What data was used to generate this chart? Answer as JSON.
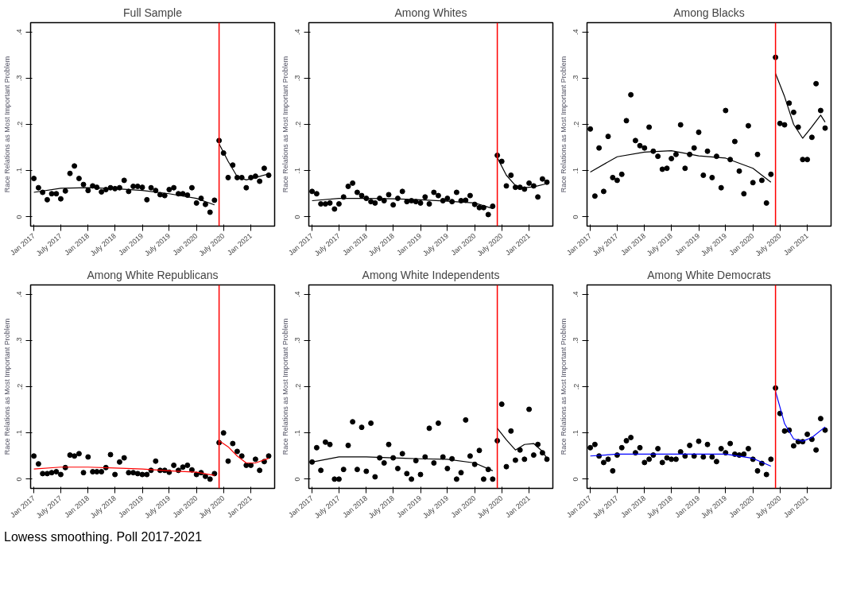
{
  "chart_data": [
    {
      "type": "scatter",
      "title": "Full Sample",
      "ylabel": "Race Relations as Most Important Problem",
      "line_style": "solid",
      "grid": false,
      "x": [
        "2017-01",
        "2017-02",
        "2017-03",
        "2017-04",
        "2017-05",
        "2017-06",
        "2017-07",
        "2017-08",
        "2017-09",
        "2017-10",
        "2017-11",
        "2017-12",
        "2018-01",
        "2018-02",
        "2018-03",
        "2018-04",
        "2018-05",
        "2018-06",
        "2018-07",
        "2018-08",
        "2018-09",
        "2018-10",
        "2018-11",
        "2018-12",
        "2019-01",
        "2019-02",
        "2019-03",
        "2019-04",
        "2019-05",
        "2019-06",
        "2019-07",
        "2019-08",
        "2019-09",
        "2019-10",
        "2019-11",
        "2019-12",
        "2020-01",
        "2020-02",
        "2020-03",
        "2020-04",
        "2020-05",
        "2020-06",
        "2020-07",
        "2020-08",
        "2020-09",
        "2020-10",
        "2020-11",
        "2020-12",
        "2021-01",
        "2021-02",
        "2021-03",
        "2021-04",
        "2021-05"
      ],
      "xlim": [
        "2016-12-10",
        "2021-06-10"
      ],
      "xticks": [
        {
          "value": "2017-01",
          "label": "Jan 2017"
        },
        {
          "value": "2017-07",
          "label": "July 2017"
        },
        {
          "value": "2018-01",
          "label": "Jan 2018"
        },
        {
          "value": "2018-07",
          "label": "July 2018"
        },
        {
          "value": "2019-01",
          "label": "Jan 2019"
        },
        {
          "value": "2019-07",
          "label": "July 2019"
        },
        {
          "value": "2020-01",
          "label": "Jan 2020"
        },
        {
          "value": "2020-07",
          "label": "July 2020"
        },
        {
          "value": "2021-01",
          "label": "Jan 2021"
        }
      ],
      "ylim": [
        -0.02,
        0.42
      ],
      "yticks": [
        0,
        {
          "value": 0.1,
          "label": ".1"
        },
        {
          "value": 0.2,
          "label": ".2"
        },
        {
          "value": 0.3,
          "label": ".3"
        },
        {
          "value": 0.4,
          "label": ".4"
        }
      ],
      "ref_lines": [
        {
          "axis": "x",
          "value": "2020-06",
          "color": "#ff0000"
        }
      ],
      "series": [
        {
          "color": "#000000",
          "marker": "circle",
          "values": [
            0.083,
            0.063,
            0.053,
            0.037,
            0.05,
            0.05,
            0.039,
            0.056,
            0.094,
            0.11,
            0.083,
            0.07,
            0.057,
            0.067,
            0.064,
            0.054,
            0.059,
            0.063,
            0.061,
            0.063,
            0.079,
            0.055,
            0.066,
            0.066,
            0.064,
            0.037,
            0.063,
            0.057,
            0.048,
            0.046,
            0.059,
            0.063,
            0.05,
            0.05,
            0.047,
            0.063,
            0.03,
            0.04,
            0.027,
            0.01,
            0.036,
            0.165,
            0.138,
            0.085,
            0.112,
            0.085,
            0.085,
            0.063,
            0.085,
            0.088,
            0.077,
            0.105,
            0.09
          ]
        },
        {
          "type": "line",
          "color": "#000000",
          "x": [
            "2017-01",
            "2017-07",
            "2018-01",
            "2018-07",
            "2019-01",
            "2019-07",
            "2020-01",
            "2020-05"
          ],
          "values": [
            0.053,
            0.062,
            0.063,
            0.061,
            0.057,
            0.05,
            0.04,
            0.026
          ]
        },
        {
          "type": "line",
          "color": "#000000",
          "x": [
            "2020-06",
            "2020-08",
            "2020-10",
            "2020-12",
            "2021-02",
            "2021-05"
          ],
          "values": [
            0.158,
            0.12,
            0.087,
            0.08,
            0.085,
            0.093
          ]
        }
      ]
    },
    {
      "type": "scatter",
      "title": "Among Whites",
      "ylabel": "Race Relations as Most Important Problem",
      "line_style": "solid",
      "grid": false,
      "x": [
        "2017-01",
        "2017-02",
        "2017-03",
        "2017-04",
        "2017-05",
        "2017-06",
        "2017-07",
        "2017-08",
        "2017-09",
        "2017-10",
        "2017-11",
        "2017-12",
        "2018-01",
        "2018-02",
        "2018-03",
        "2018-04",
        "2018-05",
        "2018-06",
        "2018-07",
        "2018-08",
        "2018-09",
        "2018-10",
        "2018-11",
        "2018-12",
        "2019-01",
        "2019-02",
        "2019-03",
        "2019-04",
        "2019-05",
        "2019-06",
        "2019-07",
        "2019-08",
        "2019-09",
        "2019-10",
        "2019-11",
        "2019-12",
        "2020-01",
        "2020-02",
        "2020-03",
        "2020-04",
        "2020-05",
        "2020-06",
        "2020-07",
        "2020-08",
        "2020-09",
        "2020-10",
        "2020-11",
        "2020-12",
        "2021-01",
        "2021-02",
        "2021-03",
        "2021-04",
        "2021-05"
      ],
      "xlim": [
        "2016-12-10",
        "2021-06-10"
      ],
      "xticks": [
        {
          "value": "2017-01",
          "label": "Jan 2017"
        },
        {
          "value": "2017-07",
          "label": "July 2017"
        },
        {
          "value": "2018-01",
          "label": "Jan 2018"
        },
        {
          "value": "2018-07",
          "label": "July 2018"
        },
        {
          "value": "2019-01",
          "label": "Jan 2019"
        },
        {
          "value": "2019-07",
          "label": "July 2019"
        },
        {
          "value": "2020-01",
          "label": "Jan 2020"
        },
        {
          "value": "2020-07",
          "label": "July 2020"
        },
        {
          "value": "2021-01",
          "label": "Jan 2021"
        }
      ],
      "ylim": [
        -0.02,
        0.42
      ],
      "yticks": [
        0,
        {
          "value": 0.1,
          "label": ".1"
        },
        {
          "value": 0.2,
          "label": ".2"
        },
        {
          "value": 0.3,
          "label": ".3"
        },
        {
          "value": 0.4,
          "label": ".4"
        }
      ],
      "ref_lines": [
        {
          "axis": "x",
          "value": "2020-06",
          "color": "#ff0000"
        }
      ],
      "series": [
        {
          "color": "#000000",
          "marker": "circle",
          "values": [
            0.055,
            0.05,
            0.028,
            0.028,
            0.03,
            0.017,
            0.028,
            0.043,
            0.066,
            0.073,
            0.053,
            0.046,
            0.04,
            0.033,
            0.03,
            0.04,
            0.035,
            0.048,
            0.026,
            0.04,
            0.055,
            0.033,
            0.035,
            0.033,
            0.03,
            0.043,
            0.028,
            0.053,
            0.046,
            0.035,
            0.04,
            0.033,
            0.053,
            0.035,
            0.036,
            0.046,
            0.027,
            0.02,
            0.02,
            0.005,
            0.023,
            0.133,
            0.12,
            0.067,
            0.09,
            0.064,
            0.064,
            0.06,
            0.073,
            0.067,
            0.043,
            0.082,
            0.075
          ]
        },
        {
          "type": "line",
          "color": "#000000",
          "x": [
            "2017-01",
            "2017-07",
            "2018-01",
            "2018-07",
            "2019-01",
            "2019-07",
            "2020-01",
            "2020-05"
          ],
          "values": [
            0.035,
            0.04,
            0.04,
            0.039,
            0.037,
            0.034,
            0.03,
            0.018
          ]
        },
        {
          "type": "line",
          "color": "#000000",
          "x": [
            "2020-06",
            "2020-08",
            "2020-10",
            "2020-12",
            "2021-02",
            "2021-05"
          ],
          "values": [
            0.128,
            0.09,
            0.068,
            0.063,
            0.065,
            0.072
          ]
        }
      ]
    },
    {
      "type": "scatter",
      "title": "Among Blacks",
      "ylabel": "Race Relations as Most Important Problem",
      "line_style": "solid",
      "grid": false,
      "x": [
        "2017-01",
        "2017-02",
        "2017-03",
        "2017-04",
        "2017-05",
        "2017-06",
        "2017-07",
        "2017-08",
        "2017-09",
        "2017-10",
        "2017-11",
        "2017-12",
        "2018-01",
        "2018-02",
        "2018-03",
        "2018-04",
        "2018-05",
        "2018-06",
        "2018-07",
        "2018-08",
        "2018-09",
        "2018-10",
        "2018-11",
        "2018-12",
        "2019-01",
        "2019-02",
        "2019-03",
        "2019-04",
        "2019-05",
        "2019-06",
        "2019-07",
        "2019-08",
        "2019-09",
        "2019-10",
        "2019-11",
        "2019-12",
        "2020-01",
        "2020-02",
        "2020-03",
        "2020-04",
        "2020-05",
        "2020-06",
        "2020-07",
        "2020-08",
        "2020-09",
        "2020-10",
        "2020-11",
        "2020-12",
        "2021-01",
        "2021-02",
        "2021-03",
        "2021-04",
        "2021-05"
      ],
      "xlim": [
        "2016-12-10",
        "2021-06-10"
      ],
      "xticks": [
        {
          "value": "2017-01",
          "label": "Jan 2017"
        },
        {
          "value": "2017-07",
          "label": "July 2017"
        },
        {
          "value": "2018-01",
          "label": "Jan 2018"
        },
        {
          "value": "2018-07",
          "label": "July 2018"
        },
        {
          "value": "2019-01",
          "label": "Jan 2019"
        },
        {
          "value": "2019-07",
          "label": "July 2019"
        },
        {
          "value": "2020-01",
          "label": "Jan 2020"
        },
        {
          "value": "2020-07",
          "label": "July 2020"
        },
        {
          "value": "2021-01",
          "label": "Jan 2021"
        }
      ],
      "ylim": [
        -0.02,
        0.42
      ],
      "yticks": [
        0,
        {
          "value": 0.1,
          "label": ".1"
        },
        {
          "value": 0.2,
          "label": ".2"
        },
        {
          "value": 0.3,
          "label": ".3"
        },
        {
          "value": 0.4,
          "label": ".4"
        }
      ],
      "ref_lines": [
        {
          "axis": "x",
          "value": "2020-06",
          "color": "#ff0000"
        }
      ],
      "series": [
        {
          "color": "#000000",
          "marker": "circle",
          "values": [
            0.19,
            0.045,
            0.149,
            0.055,
            0.174,
            0.085,
            0.079,
            0.092,
            0.208,
            0.264,
            0.165,
            0.154,
            0.149,
            0.194,
            0.142,
            0.131,
            0.103,
            0.105,
            0.126,
            0.135,
            0.199,
            0.105,
            0.135,
            0.149,
            0.183,
            0.09,
            0.142,
            0.085,
            0.131,
            0.063,
            0.23,
            0.124,
            0.163,
            0.099,
            0.05,
            0.197,
            0.074,
            0.135,
            0.079,
            0.03,
            0.092,
            0.345,
            0.202,
            0.199,
            0.246,
            0.226,
            0.194,
            0.124,
            0.124,
            0.172,
            0.288,
            0.23,
            0.192
          ]
        },
        {
          "type": "line",
          "color": "#000000",
          "x": [
            "2017-01",
            "2017-07",
            "2018-01",
            "2018-07",
            "2019-01",
            "2019-07",
            "2020-01",
            "2020-05"
          ],
          "values": [
            0.097,
            0.13,
            0.14,
            0.143,
            0.132,
            0.127,
            0.105,
            0.075
          ]
        },
        {
          "type": "line",
          "color": "#000000",
          "x": [
            "2020-06",
            "2020-08",
            "2020-10",
            "2020-12",
            "2021-02",
            "2021-04",
            "2021-05"
          ],
          "values": [
            0.31,
            0.26,
            0.2,
            0.17,
            0.195,
            0.22,
            0.205
          ]
        }
      ]
    },
    {
      "type": "scatter",
      "title": "Among White Republicans",
      "ylabel": "Race Relations as Most Important Problem",
      "line_style": "solid",
      "grid": false,
      "x": [
        "2017-01",
        "2017-02",
        "2017-03",
        "2017-04",
        "2017-05",
        "2017-06",
        "2017-07",
        "2017-08",
        "2017-09",
        "2017-10",
        "2017-11",
        "2017-12",
        "2018-01",
        "2018-02",
        "2018-03",
        "2018-04",
        "2018-05",
        "2018-06",
        "2018-07",
        "2018-08",
        "2018-09",
        "2018-10",
        "2018-11",
        "2018-12",
        "2019-01",
        "2019-02",
        "2019-03",
        "2019-04",
        "2019-05",
        "2019-06",
        "2019-07",
        "2019-08",
        "2019-09",
        "2019-10",
        "2019-11",
        "2019-12",
        "2020-01",
        "2020-02",
        "2020-03",
        "2020-04",
        "2020-05",
        "2020-06",
        "2020-07",
        "2020-08",
        "2020-09",
        "2020-10",
        "2020-11",
        "2020-12",
        "2021-01",
        "2021-02",
        "2021-03",
        "2021-04",
        "2021-05"
      ],
      "xlim": [
        "2016-12-10",
        "2021-06-10"
      ],
      "xticks": [
        {
          "value": "2017-01",
          "label": "Jan 2017"
        },
        {
          "value": "2017-07",
          "label": "July 2017"
        },
        {
          "value": "2018-01",
          "label": "Jan 2018"
        },
        {
          "value": "2018-07",
          "label": "July 2018"
        },
        {
          "value": "2019-01",
          "label": "Jan 2019"
        },
        {
          "value": "2019-07",
          "label": "July 2019"
        },
        {
          "value": "2020-01",
          "label": "Jan 2020"
        },
        {
          "value": "2020-07",
          "label": "July 2020"
        },
        {
          "value": "2021-01",
          "label": "Jan 2021"
        }
      ],
      "ylim": [
        -0.02,
        0.42
      ],
      "yticks": [
        0,
        {
          "value": 0.1,
          "label": ".1"
        },
        {
          "value": 0.2,
          "label": ".2"
        },
        {
          "value": 0.3,
          "label": ".3"
        },
        {
          "value": 0.4,
          "label": ".4"
        }
      ],
      "ref_lines": [
        {
          "axis": "x",
          "value": "2020-06",
          "color": "#ff0000"
        }
      ],
      "series": [
        {
          "color": "#000000",
          "marker": "circle",
          "values": [
            0.05,
            0.033,
            0.012,
            0.012,
            0.014,
            0.016,
            0.01,
            0.025,
            0.052,
            0.05,
            0.055,
            0.014,
            0.048,
            0.016,
            0.016,
            0.016,
            0.025,
            0.053,
            0.01,
            0.037,
            0.046,
            0.014,
            0.014,
            0.012,
            0.01,
            0.01,
            0.019,
            0.039,
            0.019,
            0.019,
            0.015,
            0.03,
            0.019,
            0.026,
            0.03,
            0.02,
            0.01,
            0.014,
            0.006,
            0.0,
            0.012,
            0.079,
            0.1,
            0.039,
            0.077,
            0.06,
            0.05,
            0.03,
            0.03,
            0.043,
            0.019,
            0.038,
            0.05
          ]
        },
        {
          "type": "line",
          "color": "#ff0000",
          "x": [
            "2017-01",
            "2017-07",
            "2018-01",
            "2018-07",
            "2019-01",
            "2019-07",
            "2020-01",
            "2020-05"
          ],
          "values": [
            0.022,
            0.026,
            0.026,
            0.024,
            0.022,
            0.018,
            0.015,
            0.008
          ]
        },
        {
          "type": "line",
          "color": "#ff0000",
          "x": [
            "2020-06",
            "2020-08",
            "2020-10",
            "2020-12",
            "2021-02",
            "2021-05"
          ],
          "values": [
            0.083,
            0.07,
            0.05,
            0.035,
            0.035,
            0.045
          ]
        }
      ]
    },
    {
      "type": "scatter",
      "title": "Among White Independents",
      "ylabel": "Race Relations as Most Important Problem",
      "line_style": "solid",
      "grid": false,
      "x": [
        "2017-01",
        "2017-02",
        "2017-03",
        "2017-04",
        "2017-05",
        "2017-06",
        "2017-07",
        "2017-08",
        "2017-09",
        "2017-10",
        "2017-11",
        "2017-12",
        "2018-01",
        "2018-02",
        "2018-03",
        "2018-04",
        "2018-05",
        "2018-06",
        "2018-07",
        "2018-08",
        "2018-09",
        "2018-10",
        "2018-11",
        "2018-12",
        "2019-01",
        "2019-02",
        "2019-03",
        "2019-04",
        "2019-05",
        "2019-06",
        "2019-07",
        "2019-08",
        "2019-09",
        "2019-10",
        "2019-11",
        "2019-12",
        "2020-01",
        "2020-02",
        "2020-03",
        "2020-04",
        "2020-05",
        "2020-06",
        "2020-07",
        "2020-08",
        "2020-09",
        "2020-10",
        "2020-11",
        "2020-12",
        "2021-01",
        "2021-02",
        "2021-03",
        "2021-04",
        "2021-05"
      ],
      "xlim": [
        "2016-12-10",
        "2021-06-10"
      ],
      "xticks": [
        {
          "value": "2017-01",
          "label": "Jan 2017"
        },
        {
          "value": "2017-07",
          "label": "July 2017"
        },
        {
          "value": "2018-01",
          "label": "Jan 2018"
        },
        {
          "value": "2018-07",
          "label": "July 2018"
        },
        {
          "value": "2019-01",
          "label": "Jan 2019"
        },
        {
          "value": "2019-07",
          "label": "July 2019"
        },
        {
          "value": "2020-01",
          "label": "Jan 2020"
        },
        {
          "value": "2020-07",
          "label": "July 2020"
        },
        {
          "value": "2021-01",
          "label": "Jan 2021"
        }
      ],
      "ylim": [
        -0.02,
        0.42
      ],
      "yticks": [
        0,
        {
          "value": 0.1,
          "label": ".1"
        },
        {
          "value": 0.2,
          "label": ".2"
        },
        {
          "value": 0.3,
          "label": ".3"
        },
        {
          "value": 0.4,
          "label": ".4"
        }
      ],
      "ref_lines": [
        {
          "axis": "x",
          "value": "2020-06",
          "color": "#ff0000"
        }
      ],
      "series": [
        {
          "color": "#000000",
          "marker": "circle",
          "values": [
            0.037,
            0.068,
            0.019,
            0.08,
            0.075,
            0.0,
            0.0,
            0.021,
            0.073,
            0.124,
            0.021,
            0.112,
            0.017,
            0.121,
            0.005,
            0.046,
            0.035,
            0.075,
            0.046,
            0.023,
            0.055,
            0.012,
            0.0,
            0.04,
            0.01,
            0.048,
            0.11,
            0.035,
            0.121,
            0.048,
            0.023,
            0.044,
            0.0,
            0.014,
            0.128,
            0.05,
            0.032,
            0.062,
            0.0,
            0.021,
            0.0,
            0.083,
            0.162,
            0.027,
            0.104,
            0.041,
            0.063,
            0.043,
            0.151,
            0.052,
            0.075,
            0.057,
            0.043
          ]
        },
        {
          "type": "line",
          "color": "#000000",
          "x": [
            "2017-01",
            "2017-07",
            "2018-01",
            "2018-07",
            "2019-01",
            "2019-07",
            "2020-01",
            "2020-05"
          ],
          "values": [
            0.037,
            0.048,
            0.048,
            0.046,
            0.044,
            0.043,
            0.035,
            0.018
          ]
        },
        {
          "type": "line",
          "color": "#000000",
          "x": [
            "2020-06",
            "2020-08",
            "2020-10",
            "2020-12",
            "2021-02",
            "2021-04",
            "2021-05"
          ],
          "values": [
            0.11,
            0.085,
            0.063,
            0.075,
            0.077,
            0.06,
            0.045
          ]
        }
      ]
    },
    {
      "type": "scatter",
      "title": "Among White Democrats",
      "ylabel": "Race Relations as Most Important Problem",
      "line_style": "solid",
      "grid": false,
      "x": [
        "2017-01",
        "2017-02",
        "2017-03",
        "2017-04",
        "2017-05",
        "2017-06",
        "2017-07",
        "2017-08",
        "2017-09",
        "2017-10",
        "2017-11",
        "2017-12",
        "2018-01",
        "2018-02",
        "2018-03",
        "2018-04",
        "2018-05",
        "2018-06",
        "2018-07",
        "2018-08",
        "2018-09",
        "2018-10",
        "2018-11",
        "2018-12",
        "2019-01",
        "2019-02",
        "2019-03",
        "2019-04",
        "2019-05",
        "2019-06",
        "2019-07",
        "2019-08",
        "2019-09",
        "2019-10",
        "2019-11",
        "2019-12",
        "2020-01",
        "2020-02",
        "2020-03",
        "2020-04",
        "2020-05",
        "2020-06",
        "2020-07",
        "2020-08",
        "2020-09",
        "2020-10",
        "2020-11",
        "2020-12",
        "2021-01",
        "2021-02",
        "2021-03",
        "2021-04",
        "2021-05"
      ],
      "xlim": [
        "2016-12-10",
        "2021-06-10"
      ],
      "xticks": [
        {
          "value": "2017-01",
          "label": "Jan 2017"
        },
        {
          "value": "2017-07",
          "label": "July 2017"
        },
        {
          "value": "2018-01",
          "label": "Jan 2018"
        },
        {
          "value": "2018-07",
          "label": "July 2018"
        },
        {
          "value": "2019-01",
          "label": "Jan 2019"
        },
        {
          "value": "2019-07",
          "label": "July 2019"
        },
        {
          "value": "2020-01",
          "label": "Jan 2020"
        },
        {
          "value": "2020-07",
          "label": "July 2020"
        },
        {
          "value": "2021-01",
          "label": "Jan 2021"
        }
      ],
      "ylim": [
        -0.02,
        0.42
      ],
      "yticks": [
        0,
        {
          "value": 0.1,
          "label": ".1"
        },
        {
          "value": 0.2,
          "label": ".2"
        },
        {
          "value": 0.3,
          "label": ".3"
        },
        {
          "value": 0.4,
          "label": ".4"
        }
      ],
      "ref_lines": [
        {
          "axis": "x",
          "value": "2020-06",
          "color": "#ff0000"
        }
      ],
      "annotations": [
        "Lowess smoothing. Poll 2017-2021"
      ],
      "series": [
        {
          "color": "#000000",
          "marker": "circle",
          "values": [
            0.068,
            0.075,
            0.05,
            0.036,
            0.043,
            0.018,
            0.052,
            0.068,
            0.083,
            0.09,
            0.057,
            0.068,
            0.036,
            0.043,
            0.052,
            0.066,
            0.036,
            0.046,
            0.043,
            0.043,
            0.059,
            0.05,
            0.073,
            0.05,
            0.082,
            0.048,
            0.075,
            0.048,
            0.038,
            0.066,
            0.057,
            0.077,
            0.054,
            0.052,
            0.054,
            0.066,
            0.043,
            0.018,
            0.034,
            0.01,
            0.043,
            0.197,
            0.142,
            0.104,
            0.106,
            0.072,
            0.081,
            0.081,
            0.097,
            0.086,
            0.063,
            0.131,
            0.106
          ]
        },
        {
          "type": "line",
          "color": "#0000ff",
          "x": [
            "2017-01",
            "2017-07",
            "2018-01",
            "2018-07",
            "2019-01",
            "2019-07",
            "2020-01",
            "2020-05"
          ],
          "values": [
            0.05,
            0.054,
            0.054,
            0.054,
            0.054,
            0.054,
            0.045,
            0.028
          ]
        },
        {
          "type": "line",
          "color": "#0000ff",
          "x": [
            "2020-06",
            "2020-08",
            "2020-10",
            "2020-12",
            "2021-02",
            "2021-05"
          ],
          "values": [
            0.19,
            0.12,
            0.087,
            0.082,
            0.09,
            0.113
          ]
        }
      ]
    }
  ]
}
